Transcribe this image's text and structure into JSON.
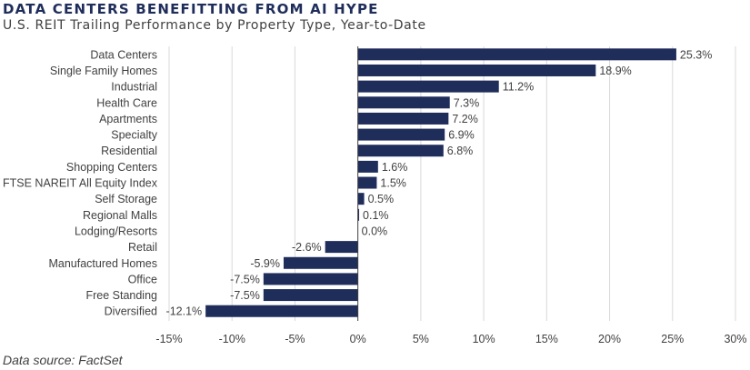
{
  "header": {
    "title": "DATA CENTERS BENEFITTING FROM AI HYPE",
    "subtitle": "U.S. REIT Trailing Performance by Property Type, Year-to-Date"
  },
  "footer": {
    "source": "Data source: FactSet"
  },
  "colors": {
    "bar": "#1f2d5a",
    "grid": "#d9d9d9",
    "axis": "#404040",
    "text": "#404040"
  },
  "chart_data": {
    "type": "bar",
    "orientation": "horizontal",
    "title": "DATA CENTERS BENEFITTING FROM AI HYPE",
    "subtitle": "U.S. REIT Trailing Performance by Property Type, Year-to-Date",
    "xlabel": "",
    "ylabel": "",
    "xlim": [
      -15,
      30
    ],
    "grid": true,
    "legend": "none",
    "categories": [
      "Data Centers",
      "Single Family Homes",
      "Industrial",
      "Health Care",
      "Apartments",
      "Specialty",
      "Residential",
      "Shopping Centers",
      "FTSE NAREIT All Equity Index",
      "Self Storage",
      "Regional Malls",
      "Lodging/Resorts",
      "Retail",
      "Manufactured Homes",
      "Office",
      "Free Standing",
      "Diversified"
    ],
    "values": [
      25.3,
      18.9,
      11.2,
      7.3,
      7.2,
      6.9,
      6.8,
      1.6,
      1.5,
      0.5,
      0.1,
      0.0,
      -2.6,
      -5.9,
      -7.5,
      -7.5,
      -12.1
    ],
    "labels": [
      "25.3%",
      "18.9%",
      "11.2%",
      "7.3%",
      "7.2%",
      "6.9%",
      "6.8%",
      "1.6%",
      "1.5%",
      "0.5%",
      "0.1%",
      "0.0%",
      "-2.6%",
      "-5.9%",
      "-7.5%",
      "-7.5%",
      "-12.1%"
    ],
    "x_ticks": [
      -15,
      -10,
      -5,
      0,
      5,
      10,
      15,
      20,
      25,
      30
    ],
    "x_tick_labels": [
      "-15%",
      "-10%",
      "-5%",
      "0%",
      "5%",
      "10%",
      "15%",
      "20%",
      "25%",
      "30%"
    ]
  }
}
